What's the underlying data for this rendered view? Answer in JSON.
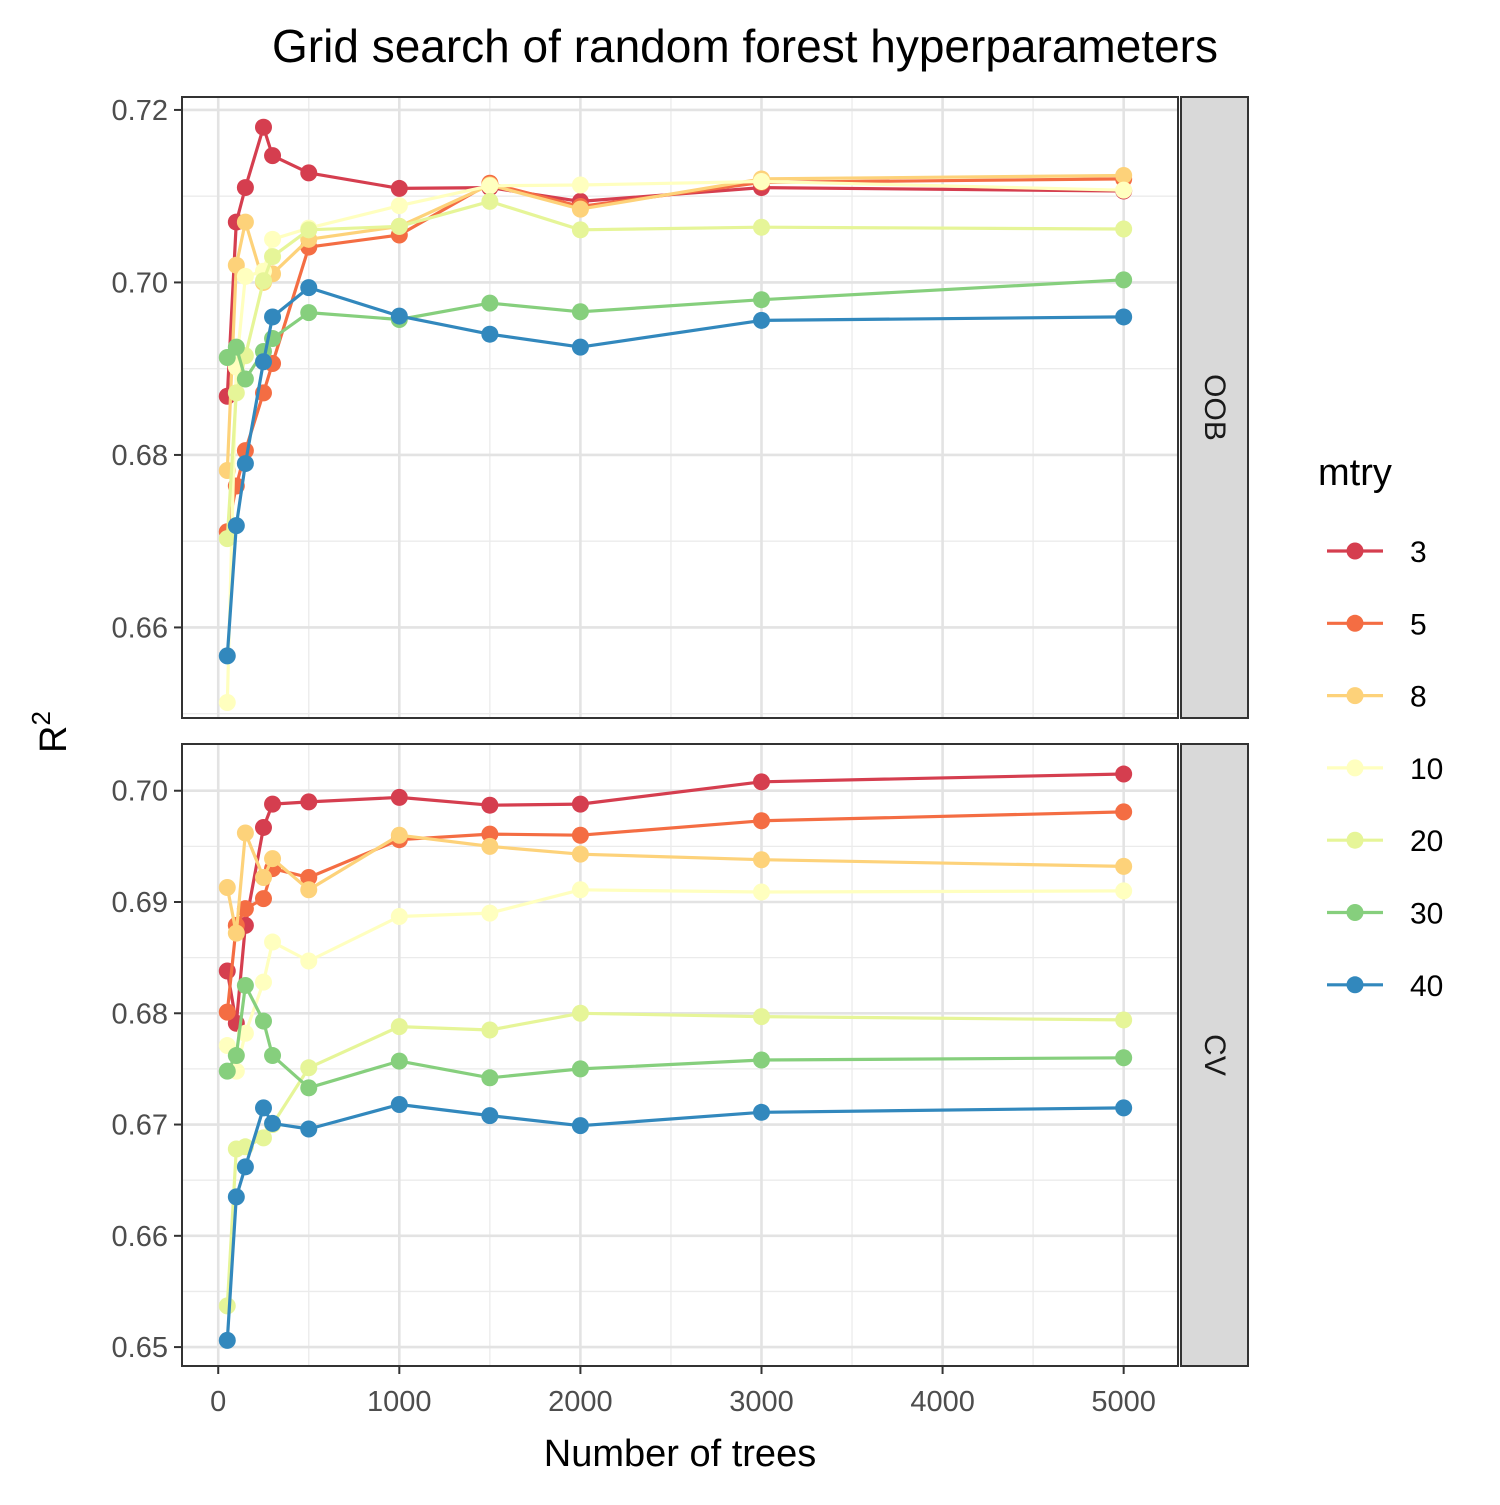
{
  "chart_data": {
    "type": "line",
    "title": "Grid search of random forest hyperparameters",
    "xlabel": "Number of trees",
    "ylabel": "R",
    "ylabel_superscript": "2",
    "legend_title": "mtry",
    "legend_position": "right",
    "grid": true,
    "xlim": [
      -200,
      5300
    ],
    "x_ticks": [
      "0",
      "1000",
      "2000",
      "3000",
      "4000",
      "5000"
    ],
    "x_tick_values": [
      0,
      1000,
      2000,
      3000,
      4000,
      5000
    ],
    "x": [
      50,
      100,
      150,
      250,
      300,
      500,
      1000,
      1500,
      2000,
      3000,
      5000
    ],
    "colors": {
      "3": "#d53e4f",
      "5": "#f46d43",
      "8": "#fdd27a",
      "10": "#ffffbf",
      "20": "#e6f598",
      "30": "#86cf7d",
      "40": "#3288bd"
    },
    "panels": [
      {
        "strip": "OOB",
        "ylim": [
          0.6495,
          0.7215
        ],
        "y_ticks": [
          "0.66",
          "0.68",
          "0.70",
          "0.72"
        ],
        "y_tick_values": [
          0.66,
          0.68,
          0.7,
          0.72
        ],
        "series": [
          {
            "name": "3",
            "values": [
              0.6868,
              0.707,
              0.711,
              0.718,
              0.7147,
              0.7127,
              0.7109,
              0.711,
              0.7094,
              0.711,
              0.7106
            ]
          },
          {
            "name": "5",
            "values": [
              0.6711,
              0.6764,
              0.6805,
              0.6872,
              0.6906,
              0.7041,
              0.7055,
              0.7115,
              0.7088,
              0.7116,
              0.712
            ]
          },
          {
            "name": "8",
            "values": [
              0.6782,
              0.702,
              0.707,
              0.7,
              0.701,
              0.705,
              0.7065,
              0.7113,
              0.7085,
              0.712,
              0.7124
            ]
          },
          {
            "name": "10",
            "values": [
              0.6513,
              0.6902,
              0.7007,
              0.7013,
              0.705,
              0.7063,
              0.7089,
              0.7112,
              0.7113,
              0.7117,
              0.7107
            ]
          },
          {
            "name": "20",
            "values": [
              0.6703,
              0.6872,
              0.6915,
              0.7002,
              0.703,
              0.7061,
              0.7065,
              0.7094,
              0.7061,
              0.7064,
              0.7062
            ]
          },
          {
            "name": "30",
            "values": [
              0.6913,
              0.6925,
              0.6888,
              0.692,
              0.6935,
              0.6965,
              0.6957,
              0.6976,
              0.6966,
              0.698,
              0.7003
            ]
          },
          {
            "name": "40",
            "values": [
              0.6567,
              0.6718,
              0.679,
              0.6908,
              0.696,
              0.6994,
              0.6961,
              0.694,
              0.6925,
              0.6956,
              0.696
            ]
          }
        ]
      },
      {
        "strip": "CV",
        "ylim": [
          0.6483,
          0.7042
        ],
        "y_ticks": [
          "0.65",
          "0.66",
          "0.67",
          "0.68",
          "0.69",
          "0.70"
        ],
        "y_tick_values": [
          0.65,
          0.66,
          0.67,
          0.68,
          0.69,
          0.7
        ],
        "series": [
          {
            "name": "3",
            "values": [
              0.6838,
              0.6791,
              0.6879,
              0.6967,
              0.6988,
              0.699,
              0.6994,
              0.6987,
              0.6988,
              0.7008,
              0.7015
            ]
          },
          {
            "name": "5",
            "values": [
              0.6801,
              0.6879,
              0.6894,
              0.6903,
              0.693,
              0.6922,
              0.6956,
              0.6961,
              0.696,
              0.6973,
              0.6981
            ]
          },
          {
            "name": "8",
            "values": [
              0.6913,
              0.6872,
              0.6962,
              0.6922,
              0.6939,
              0.6911,
              0.696,
              0.695,
              0.6943,
              0.6938,
              0.6932
            ]
          },
          {
            "name": "10",
            "values": [
              0.6771,
              0.6748,
              0.6782,
              0.6828,
              0.6864,
              0.6847,
              0.6887,
              0.689,
              0.6911,
              0.6909,
              0.691
            ]
          },
          {
            "name": "20",
            "values": [
              0.6537,
              0.6678,
              0.668,
              0.6688,
              0.67,
              0.6751,
              0.6788,
              0.6785,
              0.68,
              0.6797,
              0.6794
            ]
          },
          {
            "name": "30",
            "values": [
              0.6748,
              0.6762,
              0.6825,
              0.6793,
              0.6762,
              0.6733,
              0.6757,
              0.6742,
              0.675,
              0.6758,
              0.676
            ]
          },
          {
            "name": "40",
            "values": [
              0.6506,
              0.6635,
              0.6662,
              0.6715,
              0.6701,
              0.6696,
              0.6718,
              0.6708,
              0.6699,
              0.6711,
              0.6715
            ]
          }
        ]
      }
    ]
  }
}
